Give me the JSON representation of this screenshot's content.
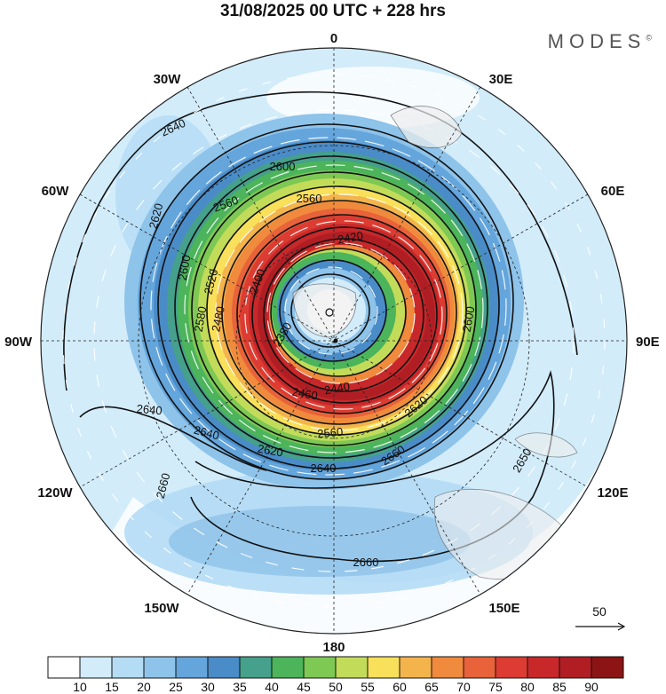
{
  "title": "31/08/2025  00 UTC  + 228 hrs",
  "brand": "MODES",
  "brand_mark": "©",
  "longitude_labels": {
    "top": "0",
    "bottom": "180",
    "left_mid": "90W",
    "right_mid": "90E",
    "n30w": "30W",
    "n30e": "30E",
    "n60w": "60W",
    "n60e": "60E",
    "s120w": "120W",
    "s120e": "120E",
    "s150w": "150W",
    "s150e": "150E"
  },
  "contour_labels": [
    "2640",
    "2600",
    "2620",
    "2560",
    "2560",
    "2420",
    "2600",
    "2520",
    "2480",
    "2400",
    "2580",
    "2380",
    "2440",
    "2460",
    "2640",
    "2640",
    "2620",
    "2560",
    "2640",
    "2660",
    "2620",
    "2600",
    "2650",
    "2660",
    "2660"
  ],
  "reference_vector": {
    "value": "50"
  },
  "colorbar": {
    "colors": [
      "#ffffff",
      "#d2ecfa",
      "#b4dcf5",
      "#8ec3ea",
      "#64a5dc",
      "#4a8cc8",
      "#45a08c",
      "#4cb45a",
      "#7ec854",
      "#c2dc5a",
      "#f8e05a",
      "#f4b44c",
      "#f08a3c",
      "#e8623a",
      "#dc3c32",
      "#c8282a",
      "#b01e24",
      "#8c1414"
    ],
    "ticks": [
      "10",
      "15",
      "20",
      "25",
      "30",
      "35",
      "40",
      "45",
      "50",
      "55",
      "60",
      "65",
      "70",
      "75",
      "80",
      "85",
      "90"
    ]
  }
}
